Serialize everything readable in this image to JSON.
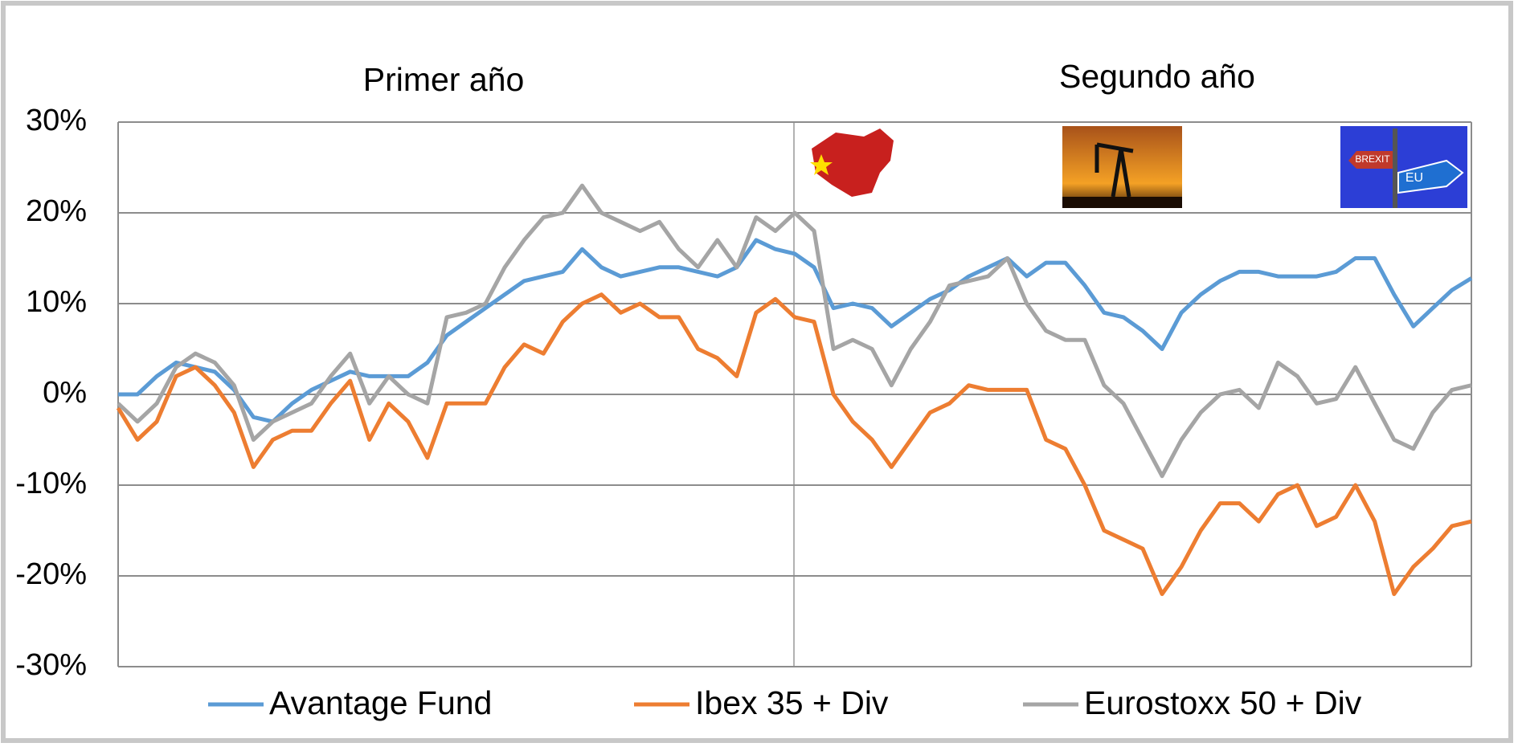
{
  "chart_data": {
    "type": "line",
    "annotations": [
      "Primer año",
      "Segundo año"
    ],
    "icon_texts": [
      "BREXIT",
      "EU"
    ],
    "ylim": [
      -30,
      30
    ],
    "yticks": [
      {
        "value": -30,
        "label": "-30%"
      },
      {
        "value": -20,
        "label": "-20%"
      },
      {
        "value": -10,
        "label": "-10%"
      },
      {
        "value": 0,
        "label": "0%"
      },
      {
        "value": 10,
        "label": "10%"
      },
      {
        "value": 20,
        "label": "20%"
      },
      {
        "value": 30,
        "label": "30%"
      }
    ],
    "grid": true,
    "legend": "bottom",
    "series": [
      {
        "name": "Avantage Fund",
        "color": "#5b9bd5",
        "values": [
          0,
          0,
          2,
          3.5,
          3,
          2.5,
          0.5,
          -2.5,
          -3,
          -1,
          0.5,
          1.5,
          2.5,
          2,
          2,
          2,
          3.5,
          6.5,
          8,
          9.5,
          11,
          12.5,
          13,
          13.5,
          16,
          14,
          13,
          13.5,
          14,
          14,
          13.5,
          13,
          14,
          17,
          16,
          15.5,
          14,
          9.5,
          10,
          9.5,
          7.5,
          9,
          10.5,
          11.5,
          13,
          14,
          15,
          13,
          14.5,
          14.5,
          12,
          9,
          8.5,
          7,
          5,
          9,
          11,
          12.5,
          13.5,
          13.5,
          13,
          13,
          13,
          13.5,
          15,
          15,
          11,
          7.5,
          9.5,
          11.5,
          12.8
        ]
      },
      {
        "name": "Ibex 35 + Div",
        "color": "#ed7d31",
        "values": [
          -1.5,
          -5,
          -3,
          2,
          3,
          1,
          -2,
          -8,
          -5,
          -4,
          -4,
          -1,
          1.5,
          -5,
          -1,
          -3,
          -7,
          -1,
          -1,
          -1,
          3,
          5.5,
          4.5,
          8,
          10,
          11,
          9,
          10,
          8.5,
          8.5,
          5,
          4,
          2,
          9,
          10.5,
          8.5,
          8,
          0,
          -3,
          -5,
          -8,
          -5,
          -2,
          -1,
          1,
          0.5,
          0.5,
          0.5,
          -5,
          -6,
          -10,
          -15,
          -16,
          -17,
          -22,
          -19,
          -15,
          -12,
          -12,
          -14,
          -11,
          -10,
          -14.5,
          -13.5,
          -10,
          -14,
          -22,
          -19,
          -17,
          -14.5,
          -14
        ]
      },
      {
        "name": "Eurostoxx 50 + Div",
        "color": "#a5a5a5",
        "values": [
          -1,
          -3,
          -1,
          3,
          4.5,
          3.5,
          1,
          -5,
          -3,
          -2,
          -1,
          2,
          4.5,
          -1,
          2,
          0,
          -1,
          8.5,
          9,
          10,
          14,
          17,
          19.5,
          20,
          23,
          20,
          19,
          18,
          19,
          16,
          14,
          17,
          14,
          19.5,
          18,
          20,
          18,
          5,
          6,
          5,
          1,
          5,
          8,
          12,
          12.5,
          13,
          15,
          10,
          7,
          6,
          6,
          1,
          -1,
          -5,
          -9,
          -5,
          -2,
          0,
          0.5,
          -1.5,
          3.5,
          2,
          -1,
          -0.5,
          3,
          -1,
          -5,
          -6,
          -2,
          0.5,
          1
        ]
      }
    ]
  }
}
